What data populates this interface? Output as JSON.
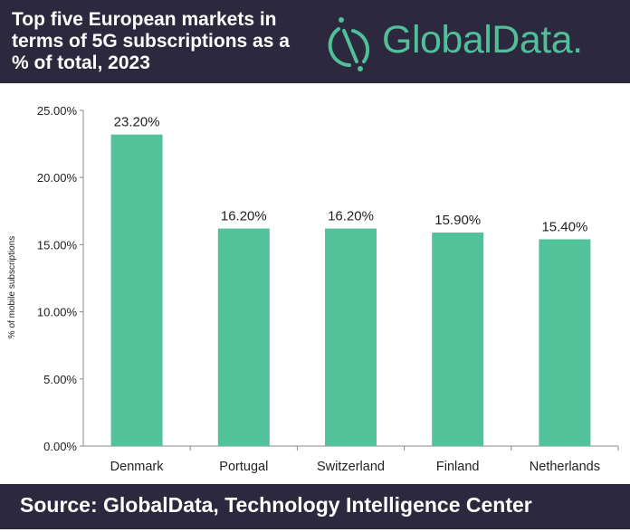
{
  "header": {
    "title": "Top five European markets in terms of 5G subscriptions as a % of total, 2023",
    "logo_text": "GlobalData."
  },
  "footer": {
    "source": "Source:  GlobalData, Technology Intelligence Center"
  },
  "colors": {
    "bar": "#52c29b",
    "header_bg": "#2c283d",
    "logo": "#4fc09a"
  },
  "chart_data": {
    "type": "bar",
    "title": "Top five European markets in terms of 5G subscriptions as a % of total, 2023",
    "categories": [
      "Denmark",
      "Portugal",
      "Switzerland",
      "Finland",
      "Netherlands"
    ],
    "values": [
      23.2,
      16.2,
      16.2,
      15.9,
      15.4
    ],
    "data_labels": [
      "23.20%",
      "16.20%",
      "16.20%",
      "15.90%",
      "15.40%"
    ],
    "xlabel": "",
    "ylabel": "% of mobile subscriptions",
    "ylim": [
      0,
      25
    ],
    "yticks": [
      "0.00%",
      "5.00%",
      "10.00%",
      "15.00%",
      "20.00%",
      "25.00%"
    ],
    "grid": false,
    "legend": "none"
  }
}
